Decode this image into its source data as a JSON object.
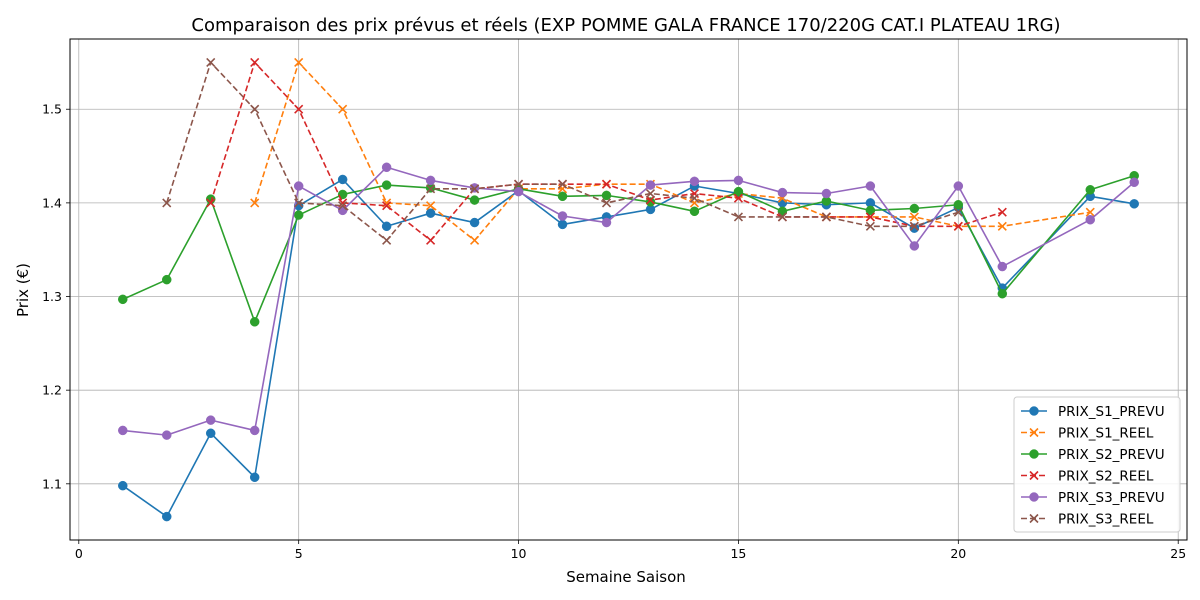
{
  "chart_data": {
    "type": "line",
    "title": "Comparaison des prix prévus et réels (EXP POMME GALA FRANCE 170/220G CAT.I PLATEAU 1RG)",
    "xlabel": "Semaine Saison",
    "ylabel": "Prix (€)",
    "xlim": [
      -0.2,
      25.2
    ],
    "ylim": [
      1.04,
      1.575
    ],
    "xticks": [
      0,
      5,
      10,
      15,
      20,
      25
    ],
    "yticks": [
      1.1,
      1.2,
      1.3,
      1.4,
      1.5
    ],
    "xtick_labels": [
      "0",
      "5",
      "10",
      "15",
      "20",
      "25"
    ],
    "ytick_labels": [
      "1.1",
      "1.2",
      "1.3",
      "1.4",
      "1.5"
    ],
    "grid": true,
    "legend_position": "lower-right",
    "series": [
      {
        "name": "PRIX_S1_PREVU",
        "color": "#1f77b4",
        "marker": "o",
        "linestyle": "solid",
        "points": [
          [
            1,
            1.098
          ],
          [
            2,
            1.065
          ],
          [
            3,
            1.154
          ],
          [
            4,
            1.107
          ],
          [
            5,
            1.397
          ],
          [
            6,
            1.425
          ],
          [
            7,
            1.375
          ],
          [
            8,
            1.389
          ],
          [
            9,
            1.379
          ],
          [
            10,
            1.413
          ],
          [
            11,
            1.377
          ],
          [
            12,
            1.385
          ],
          [
            13,
            1.393
          ],
          [
            14,
            1.418
          ],
          [
            15,
            1.41
          ],
          [
            16,
            1.4
          ],
          [
            17,
            1.398
          ],
          [
            18,
            1.4
          ],
          [
            19,
            1.373
          ],
          [
            20,
            1.395
          ],
          [
            21,
            1.309
          ],
          [
            23,
            1.407
          ],
          [
            24,
            1.399
          ]
        ]
      },
      {
        "name": "PRIX_S1_REEL",
        "color": "#ff7f0e",
        "marker": "x",
        "linestyle": "dashed",
        "points": [
          [
            4,
            1.4
          ],
          [
            5,
            1.55
          ],
          [
            6,
            1.5
          ],
          [
            7,
            1.4
          ],
          [
            8,
            1.397
          ],
          [
            9,
            1.36
          ],
          [
            10,
            1.415
          ],
          [
            11,
            1.415
          ],
          [
            12,
            1.42
          ],
          [
            13,
            1.42
          ],
          [
            14,
            1.4
          ],
          [
            15,
            1.41
          ],
          [
            16,
            1.405
          ],
          [
            17,
            1.385
          ],
          [
            18,
            1.385
          ],
          [
            19,
            1.385
          ],
          [
            20,
            1.375
          ],
          [
            21,
            1.375
          ],
          [
            23,
            1.39
          ]
        ]
      },
      {
        "name": "PRIX_S2_PREVU",
        "color": "#2ca02c",
        "marker": "o",
        "linestyle": "solid",
        "points": [
          [
            1,
            1.297
          ],
          [
            2,
            1.318
          ],
          [
            3,
            1.404
          ],
          [
            4,
            1.273
          ],
          [
            5,
            1.387
          ],
          [
            6,
            1.409
          ],
          [
            7,
            1.419
          ],
          [
            8,
            1.416
          ],
          [
            9,
            1.403
          ],
          [
            10,
            1.415
          ],
          [
            11,
            1.407
          ],
          [
            12,
            1.408
          ],
          [
            13,
            1.401
          ],
          [
            14,
            1.391
          ],
          [
            15,
            1.412
          ],
          [
            16,
            1.391
          ],
          [
            17,
            1.402
          ],
          [
            18,
            1.392
          ],
          [
            19,
            1.394
          ],
          [
            20,
            1.398
          ],
          [
            21,
            1.303
          ],
          [
            23,
            1.414
          ],
          [
            24,
            1.429
          ]
        ]
      },
      {
        "name": "PRIX_S2_REEL",
        "color": "#d62728",
        "marker": "x",
        "linestyle": "dashed",
        "points": [
          [
            3,
            1.4
          ],
          [
            4,
            1.55
          ],
          [
            5,
            1.5
          ],
          [
            6,
            1.4
          ],
          [
            7,
            1.397
          ],
          [
            8,
            1.36
          ],
          [
            9,
            1.415
          ],
          [
            10,
            1.42
          ],
          [
            11,
            1.42
          ],
          [
            12,
            1.42
          ],
          [
            13,
            1.403
          ],
          [
            14,
            1.41
          ],
          [
            15,
            1.405
          ],
          [
            16,
            1.385
          ],
          [
            17,
            1.385
          ],
          [
            18,
            1.385
          ],
          [
            19,
            1.375
          ],
          [
            20,
            1.375
          ],
          [
            21,
            1.39
          ]
        ]
      },
      {
        "name": "PRIX_S3_PREVU",
        "color": "#9467bd",
        "marker": "o",
        "linestyle": "solid",
        "points": [
          [
            1,
            1.157
          ],
          [
            2,
            1.152
          ],
          [
            3,
            1.168
          ],
          [
            4,
            1.157
          ],
          [
            5,
            1.418
          ],
          [
            6,
            1.392
          ],
          [
            7,
            1.438
          ],
          [
            8,
            1.424
          ],
          [
            9,
            1.416
          ],
          [
            10,
            1.412
          ],
          [
            11,
            1.386
          ],
          [
            12,
            1.379
          ],
          [
            13,
            1.419
          ],
          [
            14,
            1.423
          ],
          [
            15,
            1.424
          ],
          [
            16,
            1.411
          ],
          [
            17,
            1.41
          ],
          [
            18,
            1.418
          ],
          [
            19,
            1.354
          ],
          [
            20,
            1.418
          ],
          [
            21,
            1.332
          ],
          [
            23,
            1.382
          ],
          [
            24,
            1.422
          ]
        ]
      },
      {
        "name": "PRIX_S3_REEL",
        "color": "#8c564b",
        "marker": "x",
        "linestyle": "dashed",
        "points": [
          [
            2,
            1.4
          ],
          [
            3,
            1.55
          ],
          [
            4,
            1.5
          ],
          [
            5,
            1.4
          ],
          [
            6,
            1.397
          ],
          [
            7,
            1.36
          ],
          [
            8,
            1.415
          ],
          [
            9,
            1.415
          ],
          [
            10,
            1.42
          ],
          [
            11,
            1.42
          ],
          [
            12,
            1.4
          ],
          [
            13,
            1.41
          ],
          [
            14,
            1.405
          ],
          [
            15,
            1.385
          ],
          [
            16,
            1.385
          ],
          [
            17,
            1.385
          ],
          [
            18,
            1.375
          ],
          [
            19,
            1.375
          ],
          [
            20,
            1.39
          ]
        ]
      }
    ]
  }
}
